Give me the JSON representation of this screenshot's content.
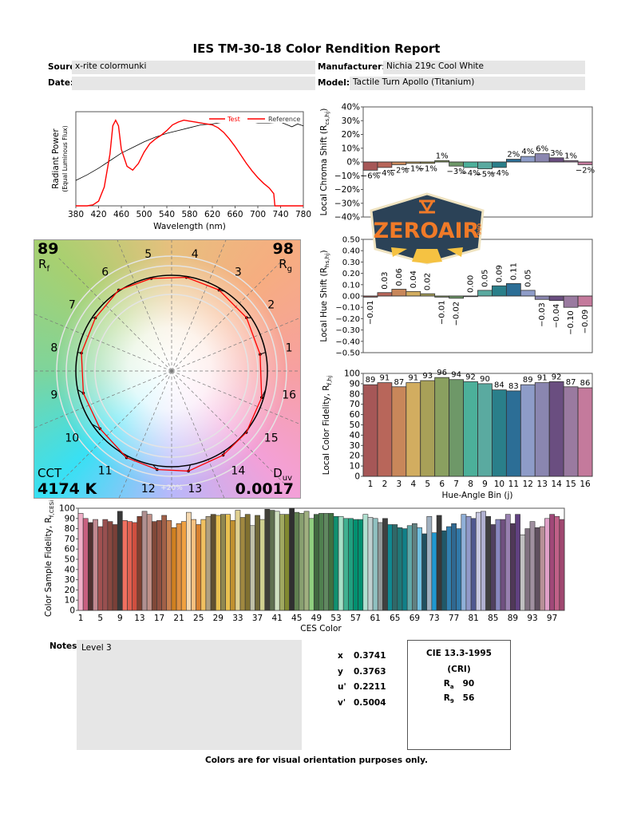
{
  "header": {
    "title": "IES TM-30-18 Color Rendition Report",
    "source_label": "Source:",
    "source": "x-rite colormunki",
    "manufacturer_label": "Manufacturer:",
    "manufacturer": "Nichia 219c Cool White",
    "date_label": "Date:",
    "date": "",
    "model_label": "Model:",
    "model": "Tactile Turn Apollo (Titanium)"
  },
  "vector": {
    "rf": "89",
    "rf_label": "R",
    "rf_sub": "f",
    "rg": "98",
    "rg_label": "R",
    "rg_sub": "g",
    "cct_label": "CCT",
    "cct": "4174 K",
    "duv_label": "D",
    "duv_sub": "uv",
    "duv": "0.0017",
    "scale_label": "+20%",
    "test_color": "#ff0000",
    "reference_color": "#000000"
  },
  "notes": {
    "label": "Notes:",
    "text": "Level 3"
  },
  "chromaticity": [
    {
      "k": "x",
      "v": "0.3741"
    },
    {
      "k": "y",
      "v": "0.3763"
    },
    {
      "k": "u'",
      "v": "0.2211"
    },
    {
      "k": "v'",
      "v": "0.5004"
    }
  ],
  "cri": {
    "title": "CIE 13.3-1995",
    "subtitle": "(CRI)",
    "ra_label": "R",
    "ra_sub": "a",
    "ra": "90",
    "r9_label": "R",
    "r9_sub": "9",
    "r9": "56"
  },
  "footer": "Colors are for visual orientation purposes only.",
  "logo": {
    "text": "ZEROAIR",
    "suffix": "ORG"
  },
  "chart_data": [
    {
      "id": "spectrum",
      "type": "line",
      "xlabel": "Wavelength (nm)",
      "ylabel": "Radiant Power",
      "ylabel2": "(Equal Luminous Flux)",
      "xlim": [
        380,
        780
      ],
      "ylim": [
        0,
        1
      ],
      "xticks": [
        380,
        420,
        460,
        500,
        540,
        580,
        620,
        660,
        700,
        740,
        780
      ],
      "legend": "top-right",
      "series": [
        {
          "name": "Test",
          "color": "#ff0000",
          "x": [
            380,
            400,
            410,
            420,
            430,
            440,
            445,
            450,
            455,
            460,
            470,
            480,
            490,
            500,
            510,
            520,
            530,
            540,
            550,
            560,
            570,
            580,
            590,
            600,
            610,
            620,
            630,
            640,
            650,
            660,
            670,
            680,
            690,
            700,
            710,
            720,
            728,
            730,
            780
          ],
          "y": [
            0,
            0,
            0.01,
            0.05,
            0.2,
            0.55,
            0.85,
            0.91,
            0.85,
            0.6,
            0.42,
            0.38,
            0.45,
            0.57,
            0.66,
            0.71,
            0.75,
            0.8,
            0.86,
            0.89,
            0.91,
            0.9,
            0.89,
            0.88,
            0.87,
            0.86,
            0.83,
            0.78,
            0.71,
            0.63,
            0.54,
            0.45,
            0.37,
            0.3,
            0.24,
            0.19,
            0.13,
            0,
            0
          ]
        },
        {
          "name": "Reference",
          "color": "#000000",
          "x": [
            380,
            400,
            420,
            440,
            460,
            480,
            500,
            520,
            540,
            560,
            580,
            600,
            620,
            640,
            660,
            680,
            700,
            720,
            740,
            760,
            770,
            780
          ],
          "y": [
            0.27,
            0.33,
            0.4,
            0.48,
            0.56,
            0.62,
            0.68,
            0.73,
            0.77,
            0.8,
            0.83,
            0.86,
            0.87,
            0.89,
            0.9,
            0.9,
            0.88,
            0.88,
            0.89,
            0.84,
            0.87,
            0.85
          ]
        }
      ]
    },
    {
      "id": "chroma",
      "type": "bar",
      "ylabel": "Local Chroma Shift (R",
      "ylabel_sub": "cs,hj",
      "ylabel_end": ")",
      "ylim": [
        -40,
        40
      ],
      "yticks": [
        -40,
        -30,
        -20,
        -10,
        0,
        10,
        20,
        30,
        40
      ],
      "unit": "%",
      "values": [
        -6,
        -4,
        -2,
        -1,
        -1,
        1,
        -3,
        -4,
        -5,
        -4,
        2,
        4,
        6,
        3,
        1,
        -2
      ]
    },
    {
      "id": "hue",
      "type": "bar",
      "ylabel": "Local Hue Shift (R",
      "ylabel_sub": "hs,hj",
      "ylabel_end": ")",
      "ylim": [
        -0.5,
        0.5
      ],
      "yticks": [
        -0.5,
        -0.4,
        -0.3,
        -0.2,
        -0.1,
        0,
        0.1,
        0.2,
        0.3,
        0.4,
        0.5
      ],
      "values": [
        -0.01,
        0.03,
        0.06,
        0.04,
        0.02,
        -0.01,
        -0.02,
        0.0,
        0.05,
        0.09,
        0.11,
        0.05,
        -0.03,
        -0.04,
        -0.1,
        -0.09
      ]
    },
    {
      "id": "rf_bins",
      "type": "bar",
      "ylabel": "Local Color Fidelity, R",
      "ylabel_sub": "f,hj",
      "xlabel": "Hue-Angle Bin (j)",
      "ylim": [
        0,
        100
      ],
      "yticks": [
        0,
        10,
        20,
        30,
        40,
        50,
        60,
        70,
        80,
        90,
        100
      ],
      "categories": [
        1,
        2,
        3,
        4,
        5,
        6,
        7,
        8,
        9,
        10,
        11,
        12,
        13,
        14,
        15,
        16
      ],
      "values": [
        89,
        91,
        87,
        91,
        93,
        96,
        94,
        92,
        90,
        84,
        83,
        89,
        91,
        92,
        87,
        86
      ]
    },
    {
      "id": "ces",
      "type": "bar",
      "ylabel": "Color Sample Fidelity, R",
      "ylabel_sub": "f,CESi",
      "xlabel": "CES Color",
      "ylim": [
        0,
        100
      ],
      "yticks": [
        0,
        10,
        20,
        30,
        40,
        50,
        60,
        70,
        80,
        90,
        100
      ],
      "xticks": [
        1,
        5,
        9,
        13,
        17,
        21,
        25,
        29,
        33,
        37,
        41,
        45,
        49,
        53,
        57,
        61,
        65,
        69,
        73,
        77,
        81,
        85,
        89,
        93,
        97
      ],
      "values": [
        95,
        90,
        86,
        89,
        82,
        89,
        87,
        84,
        97,
        88,
        87,
        86,
        92,
        97,
        94,
        87,
        88,
        93,
        88,
        81,
        85,
        87,
        96,
        89,
        84,
        89,
        92,
        94,
        93,
        94,
        94,
        88,
        98,
        91,
        94,
        83,
        93,
        89,
        99,
        98,
        97,
        94,
        94,
        100,
        96,
        95,
        97,
        90,
        94,
        95,
        95,
        95,
        92,
        92,
        90,
        90,
        89,
        89,
        94,
        91,
        90,
        86,
        90,
        84,
        84,
        81,
        80,
        83,
        85,
        81,
        75,
        92,
        76,
        93,
        78,
        82,
        85,
        80,
        94,
        92,
        90,
        96,
        97,
        92,
        84,
        89,
        89,
        94,
        85,
        94,
        74,
        80,
        87,
        81,
        82,
        90,
        94,
        92,
        89
      ],
      "colors": [
        "#f0b0c8",
        "#c86080",
        "#503030",
        "#c08890",
        "#a05050",
        "#985050",
        "#884840",
        "#7a4038",
        "#383838",
        "#f07060",
        "#e06050",
        "#d05040",
        "#804030",
        "#b09090",
        "#c09088",
        "#804838",
        "#905040",
        "#a06048",
        "#c88050",
        "#d08020",
        "#e09040",
        "#f0a040",
        "#f4d8b0",
        "#f8c080",
        "#d88030",
        "#f0c060",
        "#b0a080",
        "#605030",
        "#e8c050",
        "#908850",
        "#e8c050",
        "#c09030",
        "#e0d090",
        "#a08840",
        "#807030",
        "#c0c0a8",
        "#706838",
        "#d0d090",
        "#404038",
        "#607050",
        "#d0e0c0",
        "#a0a860",
        "#808830",
        "#303030",
        "#608050",
        "#88a070",
        "#a0b080",
        "#90d080",
        "#406840",
        "#508050",
        "#608860",
        "#407040",
        "#109070",
        "#a8e0c8",
        "#40b090",
        "#20a080",
        "#009070",
        "#009070",
        "#b0e0d0",
        "#c0d0d0",
        "#90c0c0",
        "#909898",
        "#404040",
        "#108890",
        "#306868",
        "#207878",
        "#108088",
        "#60a8a8",
        "#608080",
        "#70c0e0",
        "#205060",
        "#a0b0c0",
        "#2098d0",
        "#383838",
        "#205868",
        "#3080b0",
        "#306890",
        "#3078a8",
        "#90b0d8",
        "#9098c8",
        "#505890",
        "#c8c8e0",
        "#b0b0d0",
        "#404040",
        "#504060",
        "#8888c0",
        "#705080",
        "#9880b0",
        "#503858",
        "#604080",
        "#c0c0c0",
        "#807080",
        "#a090a0",
        "#605060",
        "#b89098",
        "#e0a0c8",
        "#a04878",
        "#c06088",
        "#a04870"
      ]
    }
  ],
  "bin_colors": [
    "#a65757",
    "#b8665a",
    "#c8875a",
    "#d2ad60",
    "#a8a058",
    "#8aa060",
    "#6e9868",
    "#4cb09a",
    "#5aaaa0",
    "#2a7f8a",
    "#2c6e96",
    "#8e9cc8",
    "#8a86b0",
    "#6a4e80",
    "#9a7aa0",
    "#c47a9c"
  ]
}
